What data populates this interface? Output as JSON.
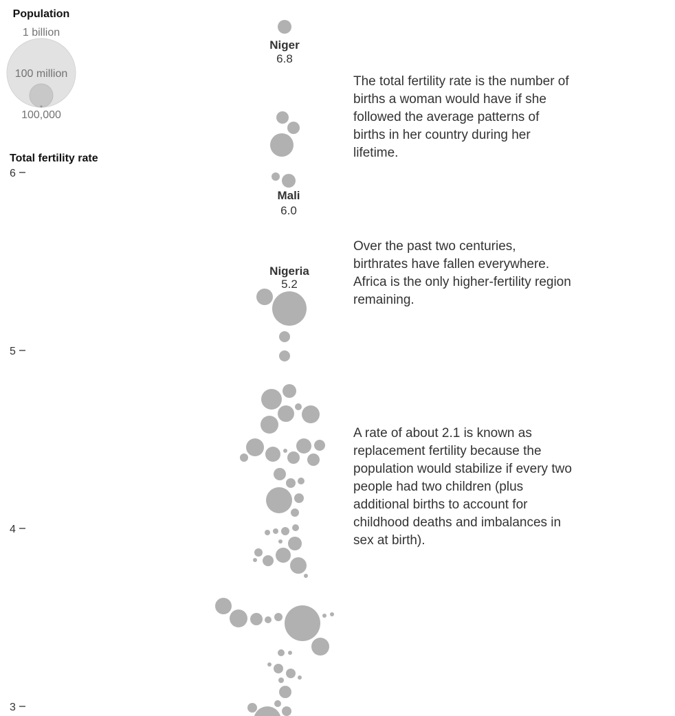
{
  "chart_data": {
    "type": "scatter",
    "subtype": "beeswarm",
    "ylabel": "Total fertility rate",
    "ylim": [
      2.95,
      6.95
    ],
    "y_ticks": [
      "3",
      "4",
      "5",
      "6"
    ],
    "bubble_color": "#b1b1b1",
    "size_legend": {
      "title": "Population",
      "entries": [
        {
          "label": "1 billion",
          "value": 1000000000
        },
        {
          "label": "100 million",
          "value": 100000000
        },
        {
          "label": "100,000",
          "value": 100000
        }
      ]
    },
    "labeled_countries": [
      {
        "name": "Niger",
        "value": "6.8",
        "tfr": 6.8
      },
      {
        "name": "Mali",
        "value": "6.0",
        "tfr": 6.0
      },
      {
        "name": "Nigeria",
        "value": "5.2",
        "tfr": 5.2
      }
    ]
  },
  "annotations": [
    {
      "text": "The total fertility rate is the number of births a woman would have if she followed the average patterns of births in her country during her lifetime."
    },
    {
      "text": "Over the past two centuries, birthrates have fallen everywhere. Africa is the only higher-fertility region remaining."
    },
    {
      "text": "A rate of about 2.1 is known as replacement fertility because the population would stabilize if every two people had two children (plus additional births to account for childhood deaths and imbalances in sex at birth)."
    }
  ]
}
